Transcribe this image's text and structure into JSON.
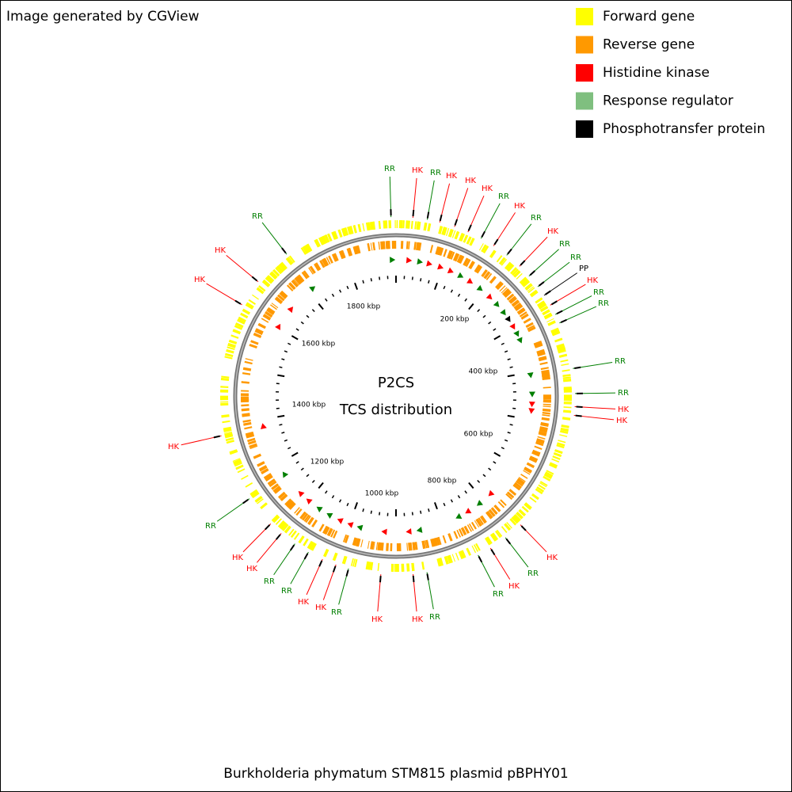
{
  "header": {
    "credit": "Image generated by CGView"
  },
  "legend": [
    {
      "label": "Forward gene",
      "color": "#ffff00"
    },
    {
      "label": "Reverse gene",
      "color": "#ff9900"
    },
    {
      "label": "Histidine kinase",
      "color": "#ff0000"
    },
    {
      "label": "Response regulator",
      "color": "#7fbf7f"
    },
    {
      "label": "Phosphotransfer protein",
      "color": "#000000"
    }
  ],
  "map": {
    "title": "P2CS",
    "subtitle": "TCS distribution",
    "ticks": [
      "200 kbp",
      "400 kbp",
      "600 kbp",
      "800 kbp",
      "1000 kbp",
      "1200 kbp",
      "1400 kbp",
      "1600 kbp",
      "1800 kbp"
    ],
    "features": [
      {
        "label": "RR",
        "color": "#007f00"
      },
      {
        "label": "HK",
        "color": "#ff0000"
      },
      {
        "label": "RR",
        "color": "#007f00"
      },
      {
        "label": "HK",
        "color": "#ff0000"
      },
      {
        "label": "HK",
        "color": "#ff0000"
      },
      {
        "label": "HK",
        "color": "#ff0000"
      },
      {
        "label": "RR",
        "color": "#007f00"
      },
      {
        "label": "HK",
        "color": "#ff0000"
      },
      {
        "label": "RR",
        "color": "#007f00"
      },
      {
        "label": "HK",
        "color": "#ff0000"
      },
      {
        "label": "RR",
        "color": "#007f00"
      },
      {
        "label": "RR",
        "color": "#007f00"
      },
      {
        "label": "PP",
        "color": "#000000"
      },
      {
        "label": "HK",
        "color": "#ff0000"
      },
      {
        "label": "RR",
        "color": "#007f00"
      },
      {
        "label": "RR",
        "color": "#007f00"
      },
      {
        "label": "RR",
        "color": "#007f00"
      },
      {
        "label": "RR",
        "color": "#007f00"
      },
      {
        "label": "HK",
        "color": "#ff0000"
      },
      {
        "label": "HK",
        "color": "#ff0000"
      },
      {
        "label": "HK",
        "color": "#ff0000"
      },
      {
        "label": "RR",
        "color": "#007f00"
      },
      {
        "label": "HK",
        "color": "#ff0000"
      },
      {
        "label": "RR",
        "color": "#007f00"
      },
      {
        "label": "RR",
        "color": "#007f00"
      },
      {
        "label": "HK",
        "color": "#ff0000"
      },
      {
        "label": "HK",
        "color": "#ff0000"
      },
      {
        "label": "RR",
        "color": "#007f00"
      },
      {
        "label": "HK",
        "color": "#ff0000"
      },
      {
        "label": "HK",
        "color": "#ff0000"
      },
      {
        "label": "RR",
        "color": "#007f00"
      },
      {
        "label": "RR",
        "color": "#007f00"
      },
      {
        "label": "HK",
        "color": "#ff0000"
      },
      {
        "label": "HK",
        "color": "#ff0000"
      },
      {
        "label": "RR",
        "color": "#007f00"
      },
      {
        "label": "HK",
        "color": "#ff0000"
      },
      {
        "label": "HK",
        "color": "#ff0000"
      },
      {
        "label": "HK",
        "color": "#ff0000"
      },
      {
        "label": "RR",
        "color": "#007f00"
      }
    ]
  },
  "footer": {
    "caption": "Burkholderia phymatum STM815 plasmid pBPHY01"
  }
}
